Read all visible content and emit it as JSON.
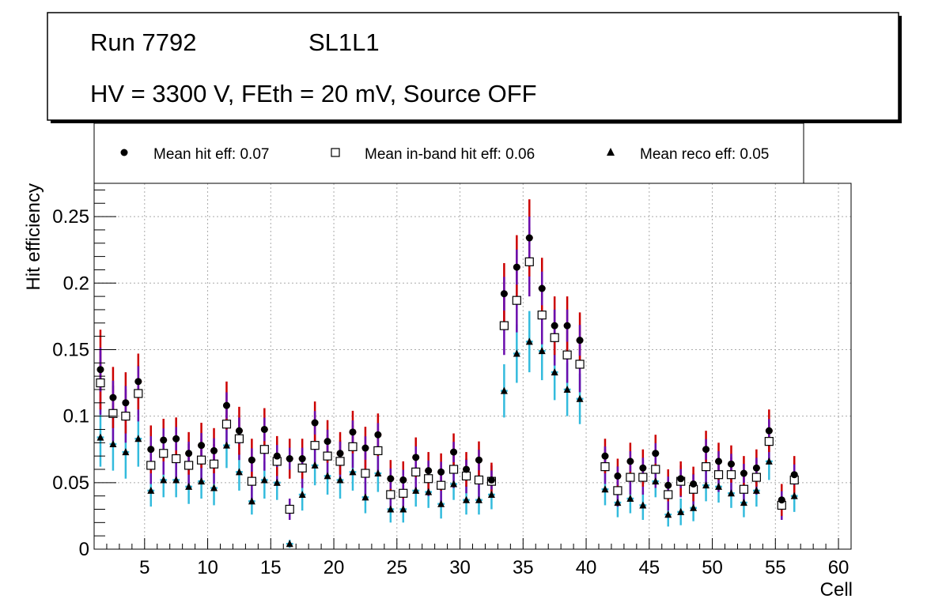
{
  "title_box": {
    "run": "Run 7792",
    "layer": "SL1L1",
    "conditions": "HV = 3300 V, FEth = 20 mV, Source OFF"
  },
  "legend": [
    {
      "label": "Mean hit  eff: 0.07",
      "marker": "filled-circle"
    },
    {
      "label": "Mean in-band hit eff: 0.06",
      "marker": "open-square"
    },
    {
      "label": "Mean reco eff: 0.05",
      "marker": "filled-triangle"
    }
  ],
  "colors": {
    "hit_err": "#cc0000",
    "hit_err_inner": "#6a0dad",
    "hit_marker": "#000000",
    "inband_err": "#6a0dad",
    "reco_err": "#33bbdd",
    "grid": "#aaaaaa"
  },
  "chart_data": {
    "type": "scatter",
    "xlabel": "Cell",
    "ylabel": "Hit efficiency",
    "xlim": [
      1,
      61
    ],
    "ylim": [
      0,
      0.275
    ],
    "xticks": [
      5,
      10,
      15,
      20,
      25,
      30,
      35,
      40,
      45,
      50,
      55,
      60
    ],
    "yticks": [
      0,
      0.05,
      0.1,
      0.15,
      0.2,
      0.25
    ],
    "ytick_labels": [
      "0",
      "0.05",
      "0.1",
      "0.15",
      "0.2",
      "0.25"
    ],
    "grid": true,
    "x": [
      1.5,
      2.5,
      3.5,
      4.5,
      5.5,
      6.5,
      7.5,
      8.5,
      9.5,
      10.5,
      11.5,
      12.5,
      13.5,
      14.5,
      15.5,
      16.5,
      17.5,
      18.5,
      19.5,
      20.5,
      21.5,
      22.5,
      23.5,
      24.5,
      25.5,
      26.5,
      27.5,
      28.5,
      29.5,
      30.5,
      31.5,
      32.5,
      33.5,
      34.5,
      35.5,
      36.5,
      37.5,
      38.5,
      39.5,
      41.5,
      42.5,
      43.5,
      44.5,
      45.5,
      46.5,
      47.5,
      48.5,
      49.5,
      50.5,
      51.5,
      52.5,
      53.5,
      54.5,
      55.5,
      56.5
    ],
    "series": [
      {
        "name": "Mean hit  eff: 0.07",
        "values": [
          0.135,
          0.114,
          0.11,
          0.126,
          0.075,
          0.082,
          0.083,
          0.072,
          0.078,
          0.074,
          0.108,
          0.089,
          0.067,
          0.09,
          0.07,
          0.068,
          0.068,
          0.095,
          0.081,
          0.072,
          0.088,
          0.076,
          0.086,
          0.053,
          0.052,
          0.069,
          0.059,
          0.058,
          0.073,
          0.06,
          0.067,
          0.052,
          0.192,
          0.212,
          0.234,
          0.196,
          0.168,
          0.168,
          0.157,
          0.07,
          0.055,
          0.066,
          0.061,
          0.072,
          0.048,
          0.053,
          0.049,
          0.075,
          0.066,
          0.064,
          0.057,
          0.061,
          0.089,
          0.037,
          0.056
        ],
        "errors": [
          0.03,
          0.023,
          0.023,
          0.021,
          0.018,
          0.016,
          0.016,
          0.016,
          0.017,
          0.017,
          0.018,
          0.018,
          0.016,
          0.016,
          0.015,
          0.015,
          0.015,
          0.016,
          0.016,
          0.016,
          0.016,
          0.016,
          0.016,
          0.014,
          0.014,
          0.015,
          0.014,
          0.014,
          0.014,
          0.013,
          0.014,
          0.013,
          0.023,
          0.024,
          0.029,
          0.023,
          0.022,
          0.022,
          0.021,
          0.013,
          0.013,
          0.014,
          0.014,
          0.014,
          0.012,
          0.013,
          0.013,
          0.014,
          0.014,
          0.014,
          0.013,
          0.014,
          0.016,
          0.012,
          0.014
        ]
      },
      {
        "name": "Mean in-band hit eff: 0.06",
        "values": [
          0.125,
          0.102,
          0.1,
          0.117,
          0.063,
          0.072,
          0.068,
          0.063,
          0.067,
          0.064,
          0.094,
          0.083,
          0.051,
          0.075,
          0.066,
          0.03,
          0.061,
          0.078,
          0.07,
          0.066,
          0.077,
          0.057,
          0.074,
          0.041,
          0.042,
          0.058,
          0.053,
          0.048,
          0.06,
          0.055,
          0.052,
          0.051,
          0.168,
          0.187,
          0.216,
          0.176,
          0.159,
          0.146,
          0.139,
          0.062,
          0.044,
          0.054,
          0.054,
          0.06,
          0.041,
          0.051,
          0.045,
          0.062,
          0.056,
          0.056,
          0.045,
          0.054,
          0.081,
          0.033,
          0.052
        ],
        "errors": [
          0.024,
          0.021,
          0.02,
          0.021,
          0.014,
          0.016,
          0.016,
          0.016,
          0.016,
          0.015,
          0.016,
          0.016,
          0.015,
          0.016,
          0.015,
          0.008,
          0.015,
          0.016,
          0.016,
          0.016,
          0.016,
          0.016,
          0.016,
          0.012,
          0.012,
          0.014,
          0.013,
          0.013,
          0.014,
          0.013,
          0.013,
          0.012,
          0.022,
          0.024,
          0.026,
          0.022,
          0.021,
          0.021,
          0.021,
          0.013,
          0.012,
          0.013,
          0.013,
          0.014,
          0.012,
          0.012,
          0.012,
          0.013,
          0.013,
          0.013,
          0.012,
          0.013,
          0.015,
          0.011,
          0.013
        ]
      },
      {
        "name": "Mean reco eff: 0.05",
        "values": [
          0.084,
          0.079,
          0.073,
          0.083,
          0.044,
          0.052,
          0.052,
          0.047,
          0.051,
          0.046,
          0.078,
          0.058,
          0.036,
          0.052,
          0.05,
          0.004,
          0.041,
          0.063,
          0.055,
          0.052,
          0.058,
          0.039,
          0.057,
          0.03,
          0.03,
          0.044,
          0.043,
          0.034,
          0.049,
          0.037,
          0.037,
          0.041,
          0.119,
          0.147,
          0.156,
          0.149,
          0.133,
          0.12,
          0.113,
          0.045,
          0.035,
          0.038,
          0.033,
          0.051,
          0.026,
          0.028,
          0.031,
          0.048,
          0.047,
          0.042,
          0.035,
          0.044,
          0.066,
          0.034,
          0.04
        ],
        "errors": [
          0.022,
          0.02,
          0.02,
          0.021,
          0.012,
          0.013,
          0.013,
          0.013,
          0.013,
          0.013,
          0.017,
          0.014,
          0.01,
          0.014,
          0.013,
          0.003,
          0.012,
          0.015,
          0.014,
          0.014,
          0.014,
          0.012,
          0.014,
          0.01,
          0.01,
          0.012,
          0.012,
          0.011,
          0.012,
          0.011,
          0.011,
          0.011,
          0.02,
          0.022,
          0.023,
          0.022,
          0.021,
          0.02,
          0.019,
          0.012,
          0.011,
          0.011,
          0.011,
          0.012,
          0.009,
          0.01,
          0.01,
          0.012,
          0.012,
          0.011,
          0.011,
          0.012,
          0.014,
          0.01,
          0.012
        ]
      }
    ]
  }
}
